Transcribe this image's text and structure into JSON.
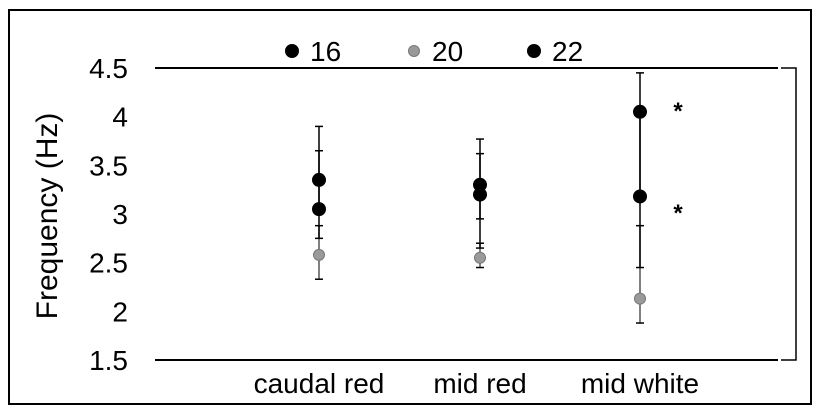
{
  "chart_data": {
    "type": "scatter",
    "title": "",
    "xlabel": "",
    "ylabel": "Frequency (Hz)",
    "categories": [
      "caudal red",
      "mid red",
      "mid white"
    ],
    "ylim": [
      1.5,
      4.5
    ],
    "yticks": [
      "1.5",
      "2",
      "2.5",
      "3",
      "3.5",
      "4",
      "4.5"
    ],
    "grid": false,
    "legend_position": "top",
    "series": [
      {
        "name": "16",
        "color": "#000000",
        "values": [
          3.35,
          3.3,
          4.05
        ],
        "err_low": [
          3.05,
          2.95,
          3.2
        ],
        "err_high": [
          3.65,
          3.62,
          4.45
        ]
      },
      {
        "name": "20",
        "color": "#9a9a9a",
        "values": [
          2.58,
          2.55,
          2.13
        ],
        "err_low": [
          2.33,
          2.45,
          1.88
        ],
        "err_high": [
          2.88,
          2.7,
          2.88
        ]
      },
      {
        "name": "22",
        "color": "#000000",
        "values": [
          3.05,
          3.2,
          3.18
        ],
        "err_low": [
          2.75,
          2.65,
          2.45
        ],
        "err_high": [
          3.9,
          3.77,
          4.1
        ]
      }
    ],
    "annotations": [
      {
        "text": "*",
        "category": "mid white",
        "y": 4.1
      },
      {
        "text": "*",
        "category": "mid white",
        "y": 3.05
      }
    ]
  }
}
